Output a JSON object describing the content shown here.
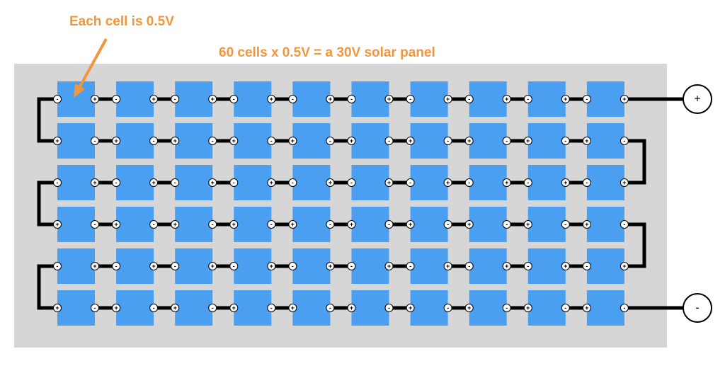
{
  "annotation": "Each cell is 0.5V",
  "title": "60 cells x 0.5V = a 30V solar panel",
  "signs": {
    "positive": "+",
    "negative": "-"
  }
}
